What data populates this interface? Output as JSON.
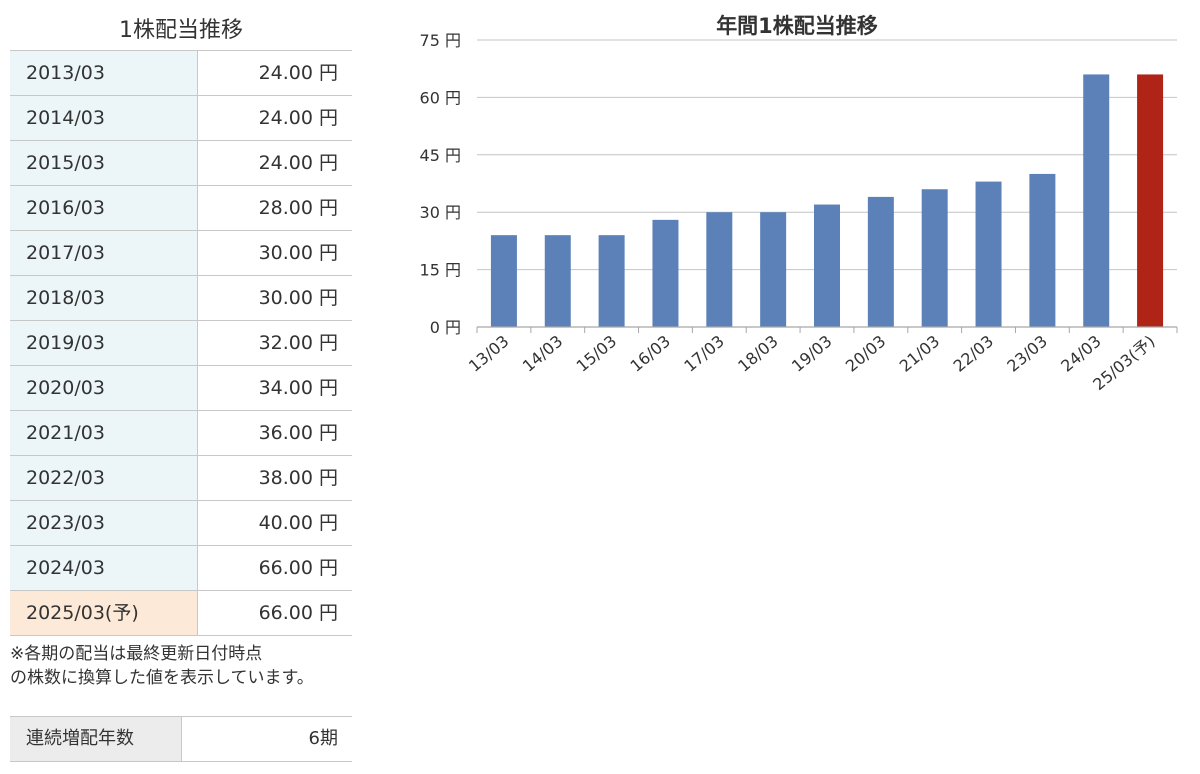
{
  "table": {
    "title": "1株配当推移",
    "rows": [
      {
        "period": "2013/03",
        "value": "24.00 円"
      },
      {
        "period": "2014/03",
        "value": "24.00 円"
      },
      {
        "period": "2015/03",
        "value": "24.00 円"
      },
      {
        "period": "2016/03",
        "value": "28.00 円"
      },
      {
        "period": "2017/03",
        "value": "30.00 円"
      },
      {
        "period": "2018/03",
        "value": "30.00 円"
      },
      {
        "period": "2019/03",
        "value": "32.00 円"
      },
      {
        "period": "2020/03",
        "value": "34.00 円"
      },
      {
        "period": "2021/03",
        "value": "36.00 円"
      },
      {
        "period": "2022/03",
        "value": "38.00 円"
      },
      {
        "period": "2023/03",
        "value": "40.00 円"
      },
      {
        "period": "2024/03",
        "value": "66.00 円"
      },
      {
        "period": "2025/03(予)",
        "value": "66.00 円"
      }
    ],
    "note_line1": "※各期の配当は最終更新日付時点",
    "note_line2": "の株数に換算した値を表示しています。"
  },
  "streak": {
    "label": "連続増配年数",
    "value": "6期"
  },
  "colors": {
    "actual_bar": "#5b81b8",
    "forecast_bar": "#b02418",
    "period_cell_bg": "#ecf6f9",
    "forecast_cell_bg": "#fce9d8",
    "streak_label_bg": "#ececec"
  },
  "chart_data": {
    "type": "bar",
    "title": "年間1株配当推移",
    "categories": [
      "13/03",
      "14/03",
      "15/03",
      "16/03",
      "17/03",
      "18/03",
      "19/03",
      "20/03",
      "21/03",
      "22/03",
      "23/03",
      "24/03",
      "25/03(予)"
    ],
    "series": [
      {
        "values": [
          24,
          24,
          24,
          28,
          30,
          30,
          32,
          34,
          36,
          38,
          40,
          66,
          66
        ],
        "forecast_index": 12
      }
    ],
    "ylim": [
      0,
      75
    ],
    "yticks": [
      0,
      15,
      30,
      45,
      60,
      75
    ],
    "ytick_labels": [
      "0 円",
      "15 円",
      "30 円",
      "45 円",
      "60 円",
      "75 円"
    ],
    "grid": true,
    "legend": "none",
    "xlabel": "",
    "ylabel": ""
  }
}
